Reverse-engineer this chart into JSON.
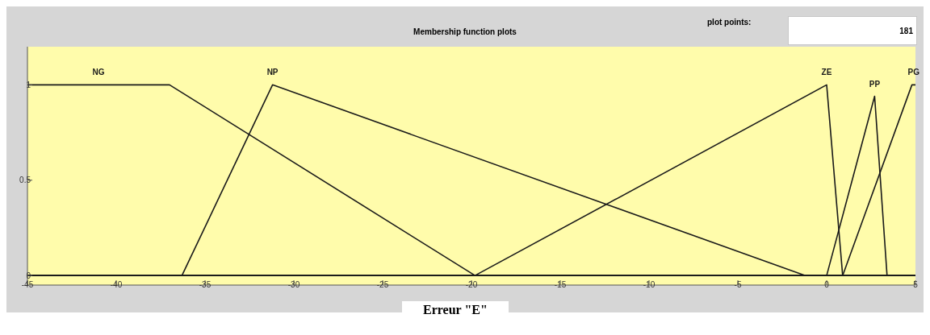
{
  "chart_data": {
    "type": "line",
    "title": "Membership function plots",
    "xlabel": "Erreur \"E\"",
    "annotations": [
      "plot points:",
      "181"
    ],
    "series": [
      {
        "name": "NG",
        "color": "#1a1a1a",
        "x": [
          -45,
          -37,
          -19.8,
          5
        ],
        "values": [
          1,
          1,
          0,
          0
        ]
      },
      {
        "name": "NP",
        "color": "#1a1a1a",
        "x": [
          -45,
          -36.3,
          -31.2,
          -1.2,
          5
        ],
        "values": [
          0,
          0,
          1,
          0,
          0
        ]
      },
      {
        "name": "ZE",
        "color": "#1a1a1a",
        "x": [
          -45,
          -19.8,
          0,
          0.9,
          5
        ],
        "values": [
          0,
          0,
          1,
          0,
          0
        ]
      },
      {
        "name": "PP",
        "color": "#1a1a1a",
        "x": [
          -45,
          0,
          2.7,
          3.4,
          5
        ],
        "values": [
          0,
          0,
          0.94,
          0,
          0
        ]
      },
      {
        "name": "PG",
        "color": "#1a1a1a",
        "x": [
          -45,
          0.9,
          4.8,
          5
        ],
        "values": [
          0,
          0,
          1,
          1
        ]
      }
    ],
    "xlim": [
      -45,
      5
    ],
    "xticks": [
      -45,
      -40,
      -35,
      -30,
      -25,
      -20,
      -15,
      -10,
      -5,
      0,
      5
    ],
    "ylim": [
      -0.05,
      1.2
    ],
    "yticks": [
      0,
      0.5,
      1
    ],
    "grid": false,
    "legend": false,
    "marker": "none",
    "line_style": "solid"
  }
}
